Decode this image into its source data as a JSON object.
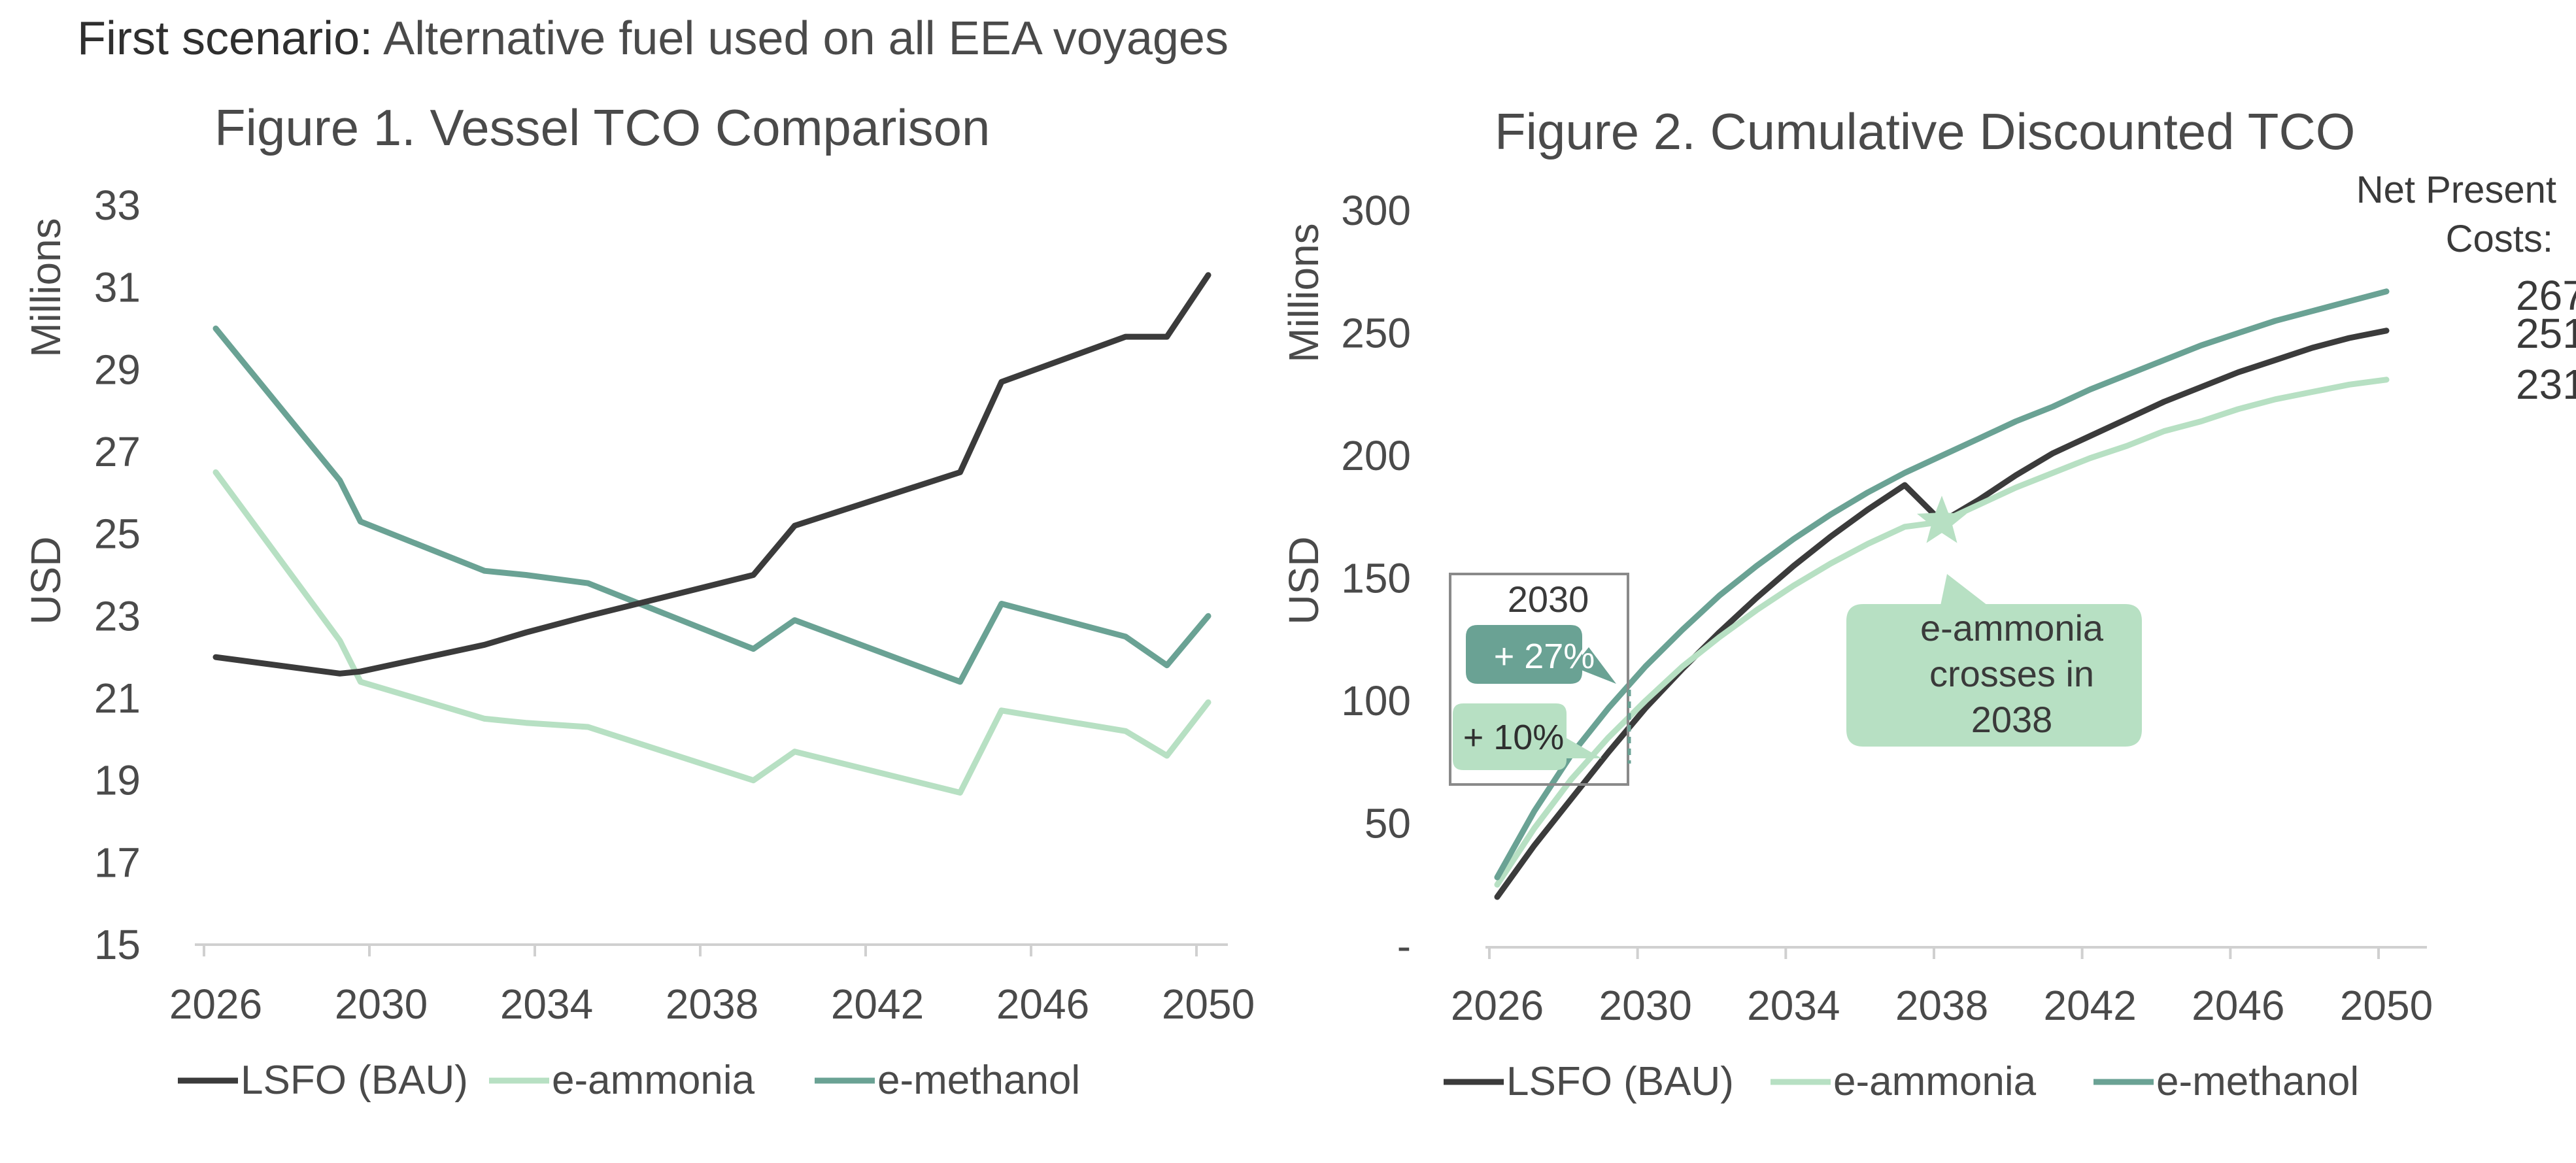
{
  "header": {
    "scenario_label": "First scenario:",
    "scenario_text": " Alternative fuel used on all EEA voyages"
  },
  "colors": {
    "lsfo": "#3b3b3b",
    "e_ammonia": "#b7e0c3",
    "e_methanol": "#6aa294",
    "callout_fill": "#b7e0c3",
    "axis": "#d0d0d0",
    "text": "#3a3a3a"
  },
  "chart_data": [
    {
      "type": "line",
      "title": "Figure 1. Vessel TCO Comparison",
      "ylabel_top": "Millions",
      "ylabel": "USD",
      "ylim": [
        15,
        33
      ],
      "yticks": [
        "15",
        "17",
        "19",
        "21",
        "23",
        "25",
        "27",
        "29",
        "31",
        "33"
      ],
      "xlim": [
        2026,
        2050
      ],
      "xticks": [
        "2026",
        "2030",
        "2034",
        "2038",
        "2042",
        "2046",
        "2050"
      ],
      "grid": false,
      "legend_position": "bottom",
      "series": [
        {
          "name": "LSFO (BAU)",
          "color_key": "lsfo",
          "x": [
            2026,
            2029,
            2029.5,
            2032.5,
            2033.5,
            2035,
            2039,
            2040,
            2044,
            2045,
            2048,
            2049,
            2050
          ],
          "values": [
            22.0,
            21.6,
            21.65,
            22.3,
            22.6,
            23.0,
            24.0,
            25.2,
            26.5,
            28.7,
            29.8,
            29.8,
            31.3
          ]
        },
        {
          "name": "e-ammonia",
          "color_key": "e_ammonia",
          "x": [
            2026,
            2029,
            2029.5,
            2032.5,
            2033.5,
            2035,
            2039,
            2040,
            2044,
            2045,
            2048,
            2049,
            2050
          ],
          "values": [
            26.5,
            22.4,
            21.4,
            20.5,
            20.4,
            20.3,
            19.0,
            19.7,
            18.7,
            20.7,
            20.2,
            19.6,
            20.9
          ]
        },
        {
          "name": "e-methanol",
          "color_key": "e_methanol",
          "x": [
            2026,
            2029,
            2029.5,
            2032.5,
            2033.5,
            2035,
            2039,
            2040,
            2044,
            2045,
            2048,
            2049,
            2050
          ],
          "values": [
            30.0,
            26.3,
            25.3,
            24.1,
            24.0,
            23.8,
            22.2,
            22.9,
            21.4,
            23.3,
            22.5,
            21.8,
            23.0
          ]
        }
      ]
    },
    {
      "type": "line",
      "title": "Figure 2. Cumulative Discounted TCO",
      "ylabel_top": "Millions",
      "ylabel": "USD",
      "ylim": [
        0,
        300
      ],
      "yticks": [
        "-",
        "50",
        "100",
        "150",
        "200",
        "250",
        "300"
      ],
      "xlim": [
        2026,
        2050
      ],
      "xticks": [
        "2026",
        "2030",
        "2034",
        "2038",
        "2042",
        "2046",
        "2050"
      ],
      "grid": false,
      "legend_position": "bottom",
      "series": [
        {
          "name": "LSFO (BAU)",
          "color_key": "lsfo",
          "x": [
            2026,
            2027,
            2028,
            2029,
            2030,
            2031,
            2032,
            2033,
            2034,
            2035,
            2036,
            2037,
            2038,
            2039,
            2040,
            2041,
            2042,
            2043,
            2044,
            2045,
            2046,
            2047,
            2048,
            2049,
            2050
          ],
          "values": [
            20,
            41,
            60,
            79,
            97,
            113,
            128,
            142,
            155,
            167,
            178,
            188,
            173,
            182,
            192,
            201,
            208,
            215,
            222,
            228,
            234,
            239,
            244,
            248,
            251
          ]
        },
        {
          "name": "e-ammonia",
          "color_key": "e_ammonia",
          "x": [
            2026,
            2027,
            2028,
            2029,
            2030,
            2031,
            2032,
            2033,
            2034,
            2035,
            2036,
            2037,
            2038,
            2039,
            2040,
            2041,
            2042,
            2043,
            2044,
            2045,
            2046,
            2047,
            2048,
            2049,
            2050
          ],
          "values": [
            25,
            48,
            68,
            85,
            100,
            114,
            126,
            137,
            147,
            156,
            164,
            171,
            173,
            180,
            187,
            193,
            199,
            204,
            210,
            214,
            219,
            223,
            226,
            229,
            231
          ]
        },
        {
          "name": "e-methanol",
          "color_key": "e_methanol",
          "x": [
            2026,
            2027,
            2028,
            2029,
            2030,
            2031,
            2032,
            2033,
            2034,
            2035,
            2036,
            2037,
            2038,
            2039,
            2040,
            2041,
            2042,
            2043,
            2044,
            2045,
            2046,
            2047,
            2048,
            2049,
            2050
          ],
          "values": [
            28,
            55,
            78,
            97,
            114,
            129,
            143,
            155,
            166,
            176,
            185,
            193,
            200,
            207,
            214,
            220,
            227,
            233,
            239,
            245,
            250,
            255,
            259,
            263,
            267
          ]
        }
      ],
      "npv": {
        "label_line1": "Net Present",
        "label_line2": "Costs:",
        "values": [
          "267",
          "251",
          "231"
        ]
      },
      "annotations": {
        "box_year": "2030",
        "methanol_premium": "+ 27%",
        "ammonia_premium": "+ 10%",
        "crossover_x": 2038,
        "crossover_y": 173,
        "crossover_text_lines": [
          "e-ammonia",
          "crosses in",
          "2038"
        ]
      }
    }
  ]
}
